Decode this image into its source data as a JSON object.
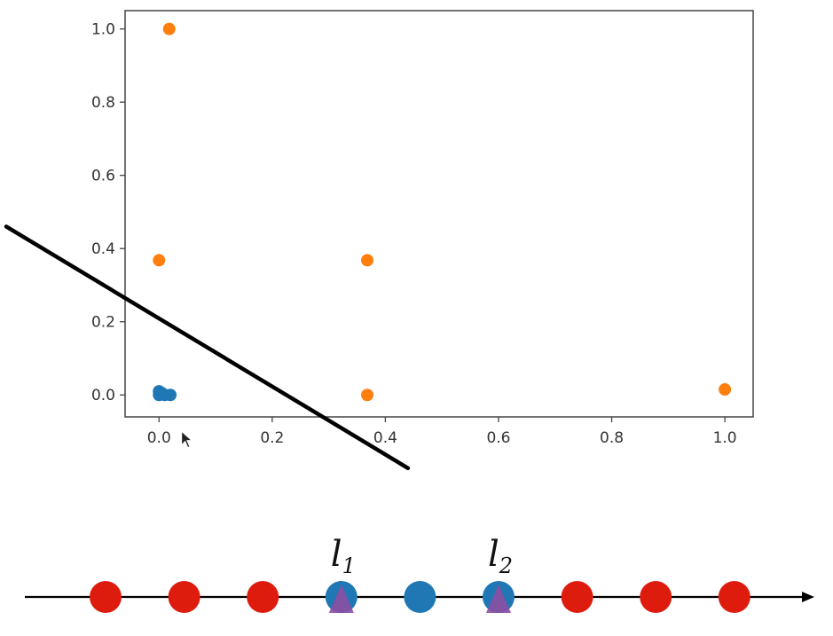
{
  "chart_data": [
    {
      "type": "scatter",
      "xlim": [
        -0.06,
        1.05
      ],
      "ylim": [
        -0.06,
        1.05
      ],
      "xticks": [
        0.0,
        0.2,
        0.4,
        0.6,
        0.8,
        1.0
      ],
      "yticks": [
        0.0,
        0.2,
        0.4,
        0.6,
        0.8,
        1.0
      ],
      "xtick_labels": [
        "0.0",
        "0.2",
        "0.4",
        "0.6",
        "0.8",
        "1.0"
      ],
      "ytick_labels": [
        "0.0",
        "0.2",
        "0.4",
        "0.6",
        "0.8",
        "1.0"
      ],
      "grid": false,
      "series": [
        {
          "color": "#1f77b4",
          "points": [
            [
              0.0,
              0.01
            ],
            [
              0.0,
              0.0
            ],
            [
              0.005,
              0.005
            ],
            [
              0.01,
              0.0
            ],
            [
              0.02,
              0.0
            ]
          ]
        },
        {
          "color": "#ff7f0e",
          "points": [
            [
              0.018,
              1.0
            ],
            [
              0.0,
              0.368
            ],
            [
              0.368,
              0.368
            ],
            [
              0.368,
              0.0
            ],
            [
              1.0,
              0.015
            ]
          ]
        }
      ],
      "annotations": {
        "line": {
          "color": "#000000",
          "from": [
            -0.27,
            0.46
          ],
          "to": [
            0.44,
            -0.2
          ]
        },
        "cursor": {
          "x": 0.04,
          "y": -0.1
        }
      }
    },
    {
      "type": "scatter",
      "description_free": true,
      "axis_color": "#000000",
      "points": [
        {
          "color": "#dd1c0e",
          "landmark": false
        },
        {
          "color": "#dd1c0e",
          "landmark": false
        },
        {
          "color": "#dd1c0e",
          "landmark": false
        },
        {
          "color": "#1f77b4",
          "landmark": true,
          "label_base": "l",
          "label_sub": "1"
        },
        {
          "color": "#1f77b4",
          "landmark": false
        },
        {
          "color": "#1f77b4",
          "landmark": true,
          "label_base": "l",
          "label_sub": "2"
        },
        {
          "color": "#dd1c0e",
          "landmark": false
        },
        {
          "color": "#dd1c0e",
          "landmark": false
        },
        {
          "color": "#dd1c0e",
          "landmark": false
        }
      ],
      "landmark_marker_color": "#8b4fa3"
    }
  ]
}
